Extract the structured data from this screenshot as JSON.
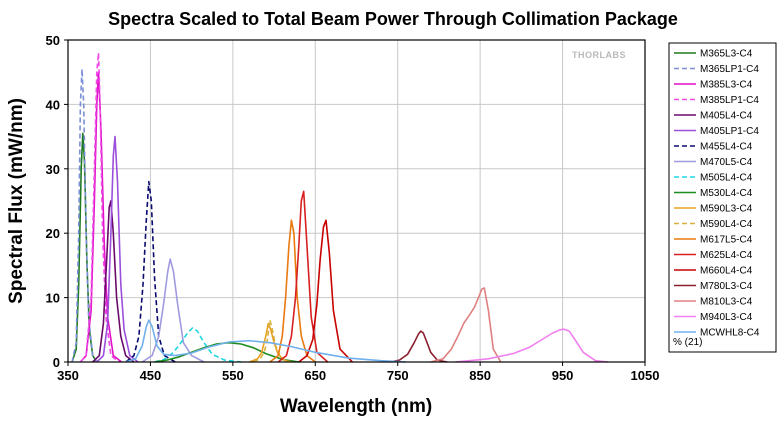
{
  "chart_data": {
    "type": "line",
    "title": "Spectra Scaled to Total Beam Power Through Collimation Package",
    "xlabel": "Wavelength (nm)",
    "ylabel": "Spectral Flux (mW/nm)",
    "xlim": [
      350,
      1050
    ],
    "ylim": [
      0,
      50
    ],
    "xticks": [
      350,
      450,
      550,
      650,
      750,
      850,
      950,
      1050
    ],
    "yticks": [
      0,
      10,
      20,
      30,
      40,
      50
    ],
    "grid": true,
    "legend_position": "right",
    "watermark": "THORLABS",
    "legend_footer": "% (21)",
    "series": [
      {
        "name": "M365L3-C4",
        "color": "#1e7a1e",
        "dash": "solid",
        "x": [
          355,
          360,
          363,
          366,
          368,
          370,
          373,
          376,
          380,
          385
        ],
        "y": [
          0,
          2,
          12,
          30,
          35.5,
          31,
          15,
          5,
          1,
          0
        ]
      },
      {
        "name": "M365LP1-C4",
        "color": "#7b8fd6",
        "dash": "dashed",
        "x": [
          355,
          360,
          363,
          365,
          367,
          369,
          372,
          375,
          380,
          385
        ],
        "y": [
          0,
          3,
          20,
          40,
          45.5,
          40,
          20,
          7,
          1,
          0
        ]
      },
      {
        "name": "M385L3-C4",
        "color": "#e010c8",
        "dash": "solid",
        "x": [
          365,
          372,
          378,
          382,
          385,
          387,
          390,
          394,
          398,
          405,
          415
        ],
        "y": [
          0,
          1,
          8,
          25,
          40,
          45,
          36,
          18,
          7,
          1,
          0
        ]
      },
      {
        "name": "M385LP1-C4",
        "color": "#f04ae8",
        "dash": "dashed",
        "x": [
          365,
          372,
          378,
          382,
          385,
          387,
          389,
          392,
          396,
          402,
          412
        ],
        "y": [
          0,
          1,
          10,
          30,
          45,
          48,
          40,
          20,
          7,
          1,
          0
        ]
      },
      {
        "name": "M405L4-C4",
        "color": "#6a0a6a",
        "dash": "solid",
        "x": [
          380,
          388,
          393,
          397,
          400,
          402,
          405,
          409,
          414,
          420,
          430
        ],
        "y": [
          0,
          1,
          6,
          16,
          24,
          25,
          20,
          10,
          4,
          1,
          0
        ]
      },
      {
        "name": "M405LP1-C4",
        "color": "#9b4fdc",
        "dash": "solid",
        "x": [
          385,
          393,
          398,
          402,
          405,
          407,
          410,
          414,
          418,
          425,
          435
        ],
        "y": [
          0,
          1,
          6,
          20,
          32,
          35,
          28,
          12,
          5,
          1,
          0
        ]
      },
      {
        "name": "M455L4-C4",
        "color": "#0a0a6e",
        "dash": "dashed",
        "x": [
          420,
          430,
          436,
          441,
          445,
          448,
          451,
          455,
          460,
          467,
          480
        ],
        "y": [
          0,
          1,
          4,
          12,
          22,
          28,
          25,
          13,
          4,
          1,
          0
        ]
      },
      {
        "name": "M470L5-C4",
        "color": "#a09ae0",
        "dash": "solid",
        "x": [
          440,
          452,
          460,
          466,
          471,
          474,
          478,
          483,
          490,
          500,
          515
        ],
        "y": [
          0,
          1,
          4,
          9,
          14,
          16,
          14,
          9,
          3,
          1,
          0
        ]
      },
      {
        "name": "M505L4-C4",
        "color": "#20d6e0",
        "dash": "dashed",
        "x": [
          455,
          468,
          478,
          487,
          495,
          501,
          507,
          515,
          525,
          540,
          560
        ],
        "y": [
          0,
          0.5,
          1.5,
          3,
          4.5,
          5.3,
          4.8,
          3,
          1.2,
          0.3,
          0
        ]
      },
      {
        "name": "M530L4-C4",
        "color": "#1f8c1f",
        "dash": "solid",
        "x": [
          455,
          470,
          485,
          500,
          515,
          530,
          545,
          560,
          575,
          590,
          610,
          630
        ],
        "y": [
          0,
          0.3,
          0.8,
          1.5,
          2.2,
          2.8,
          3.0,
          2.8,
          2.2,
          1.3,
          0.4,
          0
        ]
      },
      {
        "name": "M590L3-C4",
        "color": "#e8a020",
        "dash": "solid",
        "x": [
          570,
          580,
          585,
          590,
          593,
          596,
          600,
          605,
          612,
          620
        ],
        "y": [
          0,
          0.5,
          1.5,
          4,
          6,
          5,
          3,
          1.2,
          0.3,
          0
        ]
      },
      {
        "name": "M590L4-C4",
        "color": "#d8b040",
        "dash": "dashed",
        "x": [
          575,
          583,
          588,
          592,
          595,
          598,
          602,
          607,
          614,
          622
        ],
        "y": [
          0,
          0.5,
          1.5,
          3.5,
          6.5,
          5,
          2.5,
          1,
          0.2,
          0
        ]
      },
      {
        "name": "M617L5-C4",
        "color": "#e87a10",
        "dash": "solid",
        "x": [
          595,
          605,
          610,
          614,
          618,
          621,
          624,
          628,
          633,
          640,
          650
        ],
        "y": [
          0,
          1,
          4,
          10,
          18,
          22,
          20,
          10,
          4,
          1,
          0
        ]
      },
      {
        "name": "M625L4-C4",
        "color": "#d82020",
        "dash": "solid",
        "x": [
          605,
          615,
          621,
          626,
          630,
          633,
          636,
          640,
          645,
          652,
          665
        ],
        "y": [
          0,
          1,
          4,
          10,
          18,
          25,
          26.5,
          18,
          7,
          1.5,
          0
        ]
      },
      {
        "name": "M660L4-C4",
        "color": "#c80000",
        "dash": "solid",
        "x": [
          630,
          640,
          647,
          652,
          656,
          660,
          663,
          667,
          672,
          680,
          695
        ],
        "y": [
          0,
          1,
          3.5,
          9,
          16,
          21,
          22,
          17,
          8,
          2,
          0
        ]
      },
      {
        "name": "M780L3-C4",
        "color": "#8b2030",
        "dash": "solid",
        "x": [
          740,
          752,
          762,
          770,
          775,
          778,
          781,
          785,
          790,
          798,
          810
        ],
        "y": [
          0,
          0.3,
          1.2,
          3,
          4.3,
          4.8,
          4.5,
          3.2,
          1.5,
          0.3,
          0
        ]
      },
      {
        "name": "M810L3-C4",
        "color": "#e08080",
        "dash": "solid",
        "x": [
          790,
          805,
          815,
          823,
          830,
          838,
          843,
          848,
          852,
          855,
          860,
          866,
          875
        ],
        "y": [
          0,
          0.5,
          2,
          4,
          6,
          7.5,
          8.5,
          10,
          11.3,
          11.5,
          8,
          2,
          0
        ]
      },
      {
        "name": "M940L3-C4",
        "color": "#ef80ef",
        "dash": "solid",
        "x": [
          820,
          860,
          890,
          910,
          925,
          938,
          947,
          952,
          958,
          965,
          975,
          990,
          1005
        ],
        "y": [
          0,
          0.5,
          1.3,
          2.3,
          3.5,
          4.5,
          5.0,
          5.1,
          4.8,
          3.5,
          1.5,
          0.2,
          0
        ]
      },
      {
        "name": "MCWHL8-C4",
        "color": "#70b0ec",
        "dash": "solid",
        "x": [
          420,
          432,
          440,
          445,
          448,
          452,
          458,
          466,
          480,
          500,
          520,
          545,
          570,
          595,
          620,
          650,
          690,
          730,
          760
        ],
        "y": [
          0,
          0.5,
          2.5,
          5.5,
          6.5,
          5.5,
          2.5,
          1.2,
          1.0,
          1.4,
          2.3,
          3.1,
          3.3,
          3.0,
          2.4,
          1.5,
          0.6,
          0.2,
          0
        ]
      }
    ]
  }
}
